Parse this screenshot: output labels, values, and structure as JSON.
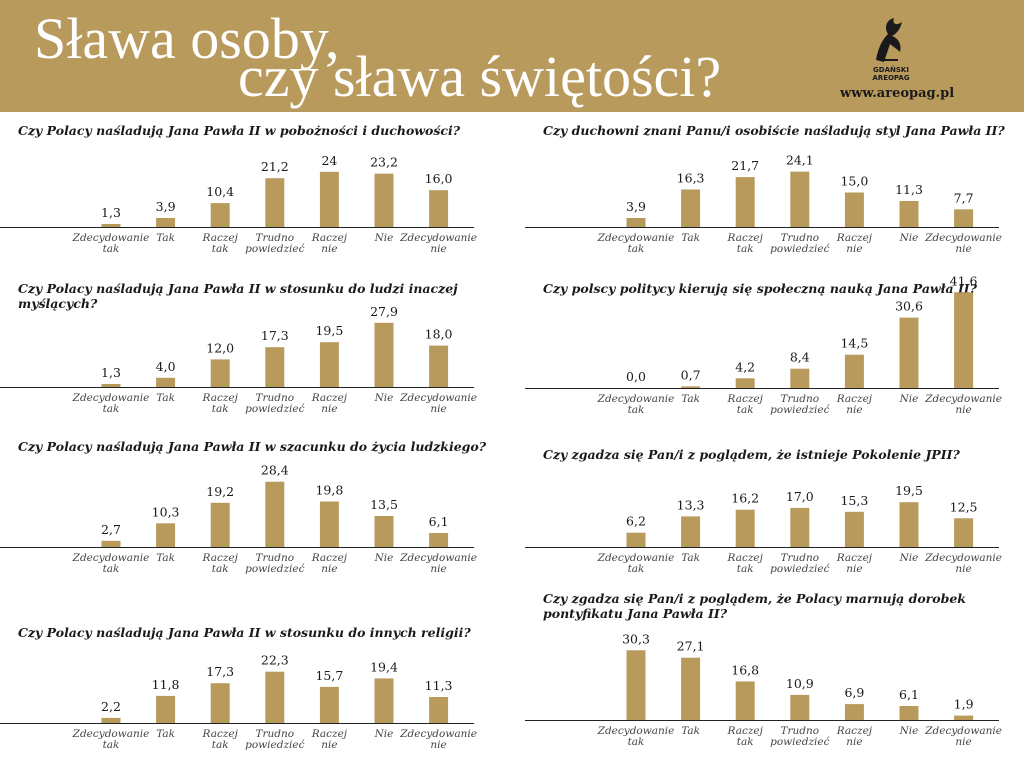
{
  "header": {
    "title_line1": "Sława osoby,",
    "title_line2": "czy sława świętości?",
    "logo_line1": "GDAŃSKI",
    "logo_line2": "AREOPAG",
    "url": "www.areopag.pl"
  },
  "colors": {
    "bar": "#b99a5d",
    "header": "#b99a5d",
    "axis": "#222222"
  },
  "chart_data": [
    {
      "type": "bar",
      "title": "Czy Polacy naśladują Jana Pawła II w pobożności i duchowości?",
      "categories": [
        "Zdecydowanie tak",
        "Tak",
        "Raczej tak",
        "Trudno powiedzieć",
        "Raczej nie",
        "Nie",
        "Zdecydowanie nie"
      ],
      "category_lines": [
        [
          "Zdecydowanie",
          "tak"
        ],
        [
          "Tak"
        ],
        [
          "Raczej",
          "tak"
        ],
        [
          "Trudno",
          "powiedzieć"
        ],
        [
          "Raczej",
          "nie"
        ],
        [
          "Nie"
        ],
        [
          "Zdecydowanie",
          "nie"
        ]
      ],
      "values": [
        1.3,
        3.9,
        10.4,
        21.2,
        24,
        23.2,
        16.0
      ],
      "value_labels": [
        "1,3",
        "3,9",
        "10,4",
        "21,2",
        "24",
        "23,2",
        "16,0"
      ]
    },
    {
      "type": "bar",
      "title": "Czy Polacy naśladują Jana Pawła II w stosunku do ludzi inaczej myślących?",
      "categories": [
        "Zdecydowanie tak",
        "Tak",
        "Raczej tak",
        "Trudno powiedzieć",
        "Raczej nie",
        "Nie",
        "Zdecydowanie nie"
      ],
      "category_lines": [
        [
          "Zdecydowanie",
          "tak"
        ],
        [
          "Tak"
        ],
        [
          "Raczej",
          "tak"
        ],
        [
          "Trudno",
          "powiedzieć"
        ],
        [
          "Raczej",
          "nie"
        ],
        [
          "Nie"
        ],
        [
          "Zdecydowanie",
          "nie"
        ]
      ],
      "values": [
        1.3,
        4.0,
        12.0,
        17.3,
        19.5,
        27.9,
        18.0
      ],
      "value_labels": [
        "1,3",
        "4,0",
        "12,0",
        "17,3",
        "19,5",
        "27,9",
        "18,0"
      ]
    },
    {
      "type": "bar",
      "title": "Czy Polacy naśladują Jana Pawła II w szacunku do życia ludzkiego?",
      "categories": [
        "Zdecydowanie tak",
        "Tak",
        "Raczej tak",
        "Trudno powiedzieć",
        "Raczej nie",
        "Nie",
        "Zdecydowanie nie"
      ],
      "category_lines": [
        [
          "Zdecydowanie",
          "tak"
        ],
        [
          "Tak"
        ],
        [
          "Raczej",
          "tak"
        ],
        [
          "Trudno",
          "powiedzieć"
        ],
        [
          "Raczej",
          "nie"
        ],
        [
          "Nie"
        ],
        [
          "Zdecydowanie",
          "nie"
        ]
      ],
      "values": [
        2.7,
        10.3,
        19.2,
        28.4,
        19.8,
        13.5,
        6.1
      ],
      "value_labels": [
        "2,7",
        "10,3",
        "19,2",
        "28,4",
        "19,8",
        "13,5",
        "6,1"
      ]
    },
    {
      "type": "bar",
      "title": "Czy Polacy naśladują Jana Pawła II w stosunku do innych religii?",
      "categories": [
        "Zdecydowanie tak",
        "Tak",
        "Raczej tak",
        "Trudno powiedzieć",
        "Raczej nie",
        "Nie",
        "Zdecydowanie nie"
      ],
      "category_lines": [
        [
          "Zdecydowanie",
          "tak"
        ],
        [
          "Tak"
        ],
        [
          "Raczej",
          "tak"
        ],
        [
          "Trudno",
          "powiedzieć"
        ],
        [
          "Raczej",
          "nie"
        ],
        [
          "Nie"
        ],
        [
          "Zdecydowanie",
          "nie"
        ]
      ],
      "values": [
        2.2,
        11.8,
        17.3,
        22.3,
        15.7,
        19.4,
        11.3
      ],
      "value_labels": [
        "2,2",
        "11,8",
        "17,3",
        "22,3",
        "15,7",
        "19,4",
        "11,3"
      ]
    },
    {
      "type": "bar",
      "title": "Czy duchowni znani Panu/i osobiście naśladują styl Jana Pawła II?",
      "categories": [
        "Zdecydowanie tak",
        "Tak",
        "Raczej tak",
        "Trudno powiedzieć",
        "Raczej nie",
        "Nie",
        "Zdecydowanie nie"
      ],
      "category_lines": [
        [
          "Zdecydowanie",
          "tak"
        ],
        [
          "Tak"
        ],
        [
          "Raczej",
          "tak"
        ],
        [
          "Trudno",
          "powiedzieć"
        ],
        [
          "Raczej",
          "nie"
        ],
        [
          "Nie"
        ],
        [
          "Zdecydowanie",
          "nie"
        ]
      ],
      "values": [
        3.9,
        16.3,
        21.7,
        24.1,
        15.0,
        11.3,
        7.7
      ],
      "value_labels": [
        "3,9",
        "16,3",
        "21,7",
        "24,1",
        "15,0",
        "11,3",
        "7,7"
      ]
    },
    {
      "type": "bar",
      "title": "Czy polscy politycy kierują się społeczną nauką Jana Pawła II?",
      "categories": [
        "Zdecydowanie tak",
        "Tak",
        "Raczej tak",
        "Trudno powiedzieć",
        "Raczej nie",
        "Nie",
        "Zdecydowanie nie"
      ],
      "category_lines": [
        [
          "Zdecydowanie",
          "tak"
        ],
        [
          "Tak"
        ],
        [
          "Raczej",
          "tak"
        ],
        [
          "Trudno",
          "powiedzieć"
        ],
        [
          "Raczej",
          "nie"
        ],
        [
          "Nie"
        ],
        [
          "Zdecydowanie",
          "nie"
        ]
      ],
      "values": [
        0.0,
        0.7,
        4.2,
        8.4,
        14.5,
        30.6,
        41.6
      ],
      "value_labels": [
        "0,0",
        "0,7",
        "4,2",
        "8,4",
        "14,5",
        "30,6",
        "41,6"
      ]
    },
    {
      "type": "bar",
      "title": "Czy zgadza się Pan/i z poglądem, że istnieje Pokolenie JPII?",
      "categories": [
        "Zdecydowanie tak",
        "Tak",
        "Raczej tak",
        "Trudno powiedzieć",
        "Raczej nie",
        "Nie",
        "Zdecydowanie nie"
      ],
      "category_lines": [
        [
          "Zdecydowanie",
          "tak"
        ],
        [
          "Tak"
        ],
        [
          "Raczej",
          "tak"
        ],
        [
          "Trudno",
          "powiedzieć"
        ],
        [
          "Raczej",
          "nie"
        ],
        [
          "Nie"
        ],
        [
          "Zdecydowanie",
          "nie"
        ]
      ],
      "values": [
        6.2,
        13.3,
        16.2,
        17.0,
        15.3,
        19.5,
        12.5
      ],
      "value_labels": [
        "6,2",
        "13,3",
        "16,2",
        "17,0",
        "15,3",
        "19,5",
        "12,5"
      ]
    },
    {
      "type": "bar",
      "title": "Czy zgadza się Pan/i z poglądem, że Polacy marnują dorobek pontyfikatu Jana Pawła II?",
      "categories": [
        "Zdecydowanie tak",
        "Tak",
        "Raczej tak",
        "Trudno powiedzieć",
        "Raczej nie",
        "Nie",
        "Zdecydowanie nie"
      ],
      "category_lines": [
        [
          "Zdecydowanie",
          "tak"
        ],
        [
          "Tak"
        ],
        [
          "Raczej",
          "tak"
        ],
        [
          "Trudno",
          "powiedzieć"
        ],
        [
          "Raczej",
          "nie"
        ],
        [
          "Nie"
        ],
        [
          "Zdecydowanie",
          "nie"
        ]
      ],
      "values": [
        30.3,
        27.1,
        16.8,
        10.9,
        6.9,
        6.1,
        1.9
      ],
      "value_labels": [
        "30,3",
        "27,1",
        "16,8",
        "10,9",
        "6,9",
        "6,1",
        "1,9"
      ]
    }
  ]
}
